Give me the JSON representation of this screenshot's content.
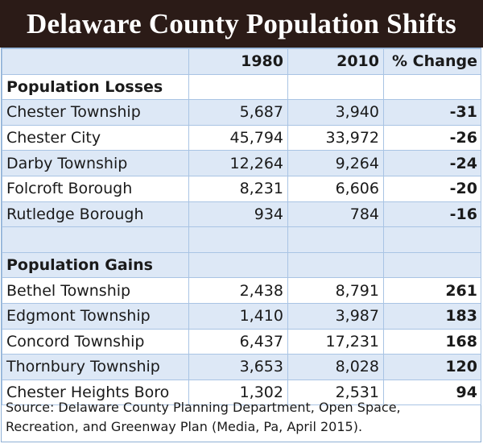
{
  "title": "Delaware County Population Shifts",
  "chart_data": {
    "type": "table",
    "title": "Delaware County Population Shifts",
    "columns": [
      "",
      "1980",
      "2010",
      "% Change"
    ],
    "sections": [
      {
        "name": "Population Losses",
        "rows": [
          {
            "place": "Chester Township",
            "y1980": "5,687",
            "y2010": "3,940",
            "change": "-31"
          },
          {
            "place": "Chester City",
            "y1980": "45,794",
            "y2010": "33,972",
            "change": "-26"
          },
          {
            "place": "Darby Township",
            "y1980": "12,264",
            "y2010": "9,264",
            "change": "-24"
          },
          {
            "place": "Folcroft Borough",
            "y1980": "8,231",
            "y2010": "6,606",
            "change": "-20"
          },
          {
            "place": "Rutledge Borough",
            "y1980": "934",
            "y2010": "784",
            "change": "-16"
          }
        ]
      },
      {
        "name": "Population Gains",
        "rows": [
          {
            "place": "Bethel Township",
            "y1980": "2,438",
            "y2010": "8,791",
            "change": "261"
          },
          {
            "place": "Edgmont Township",
            "y1980": "1,410",
            "y2010": "3,987",
            "change": "183"
          },
          {
            "place": "Concord Township",
            "y1980": "6,437",
            "y2010": "17,231",
            "change": "168"
          },
          {
            "place": "Thornbury Township",
            "y1980": "3,653",
            "y2010": "8,028",
            "change": "120"
          },
          {
            "place": "Chester Heights Boro",
            "y1980": "1,302",
            "y2010": "2,531",
            "change": "94"
          }
        ]
      }
    ],
    "source": "Source:  Delaware County Planning Department, Open Space, Recreation, and Greenway Plan (Media, Pa, April 2015)."
  },
  "colors": {
    "title_bar": "#2b1b17",
    "row_shade": "#dde8f6",
    "grid": "#a9c4e4"
  }
}
